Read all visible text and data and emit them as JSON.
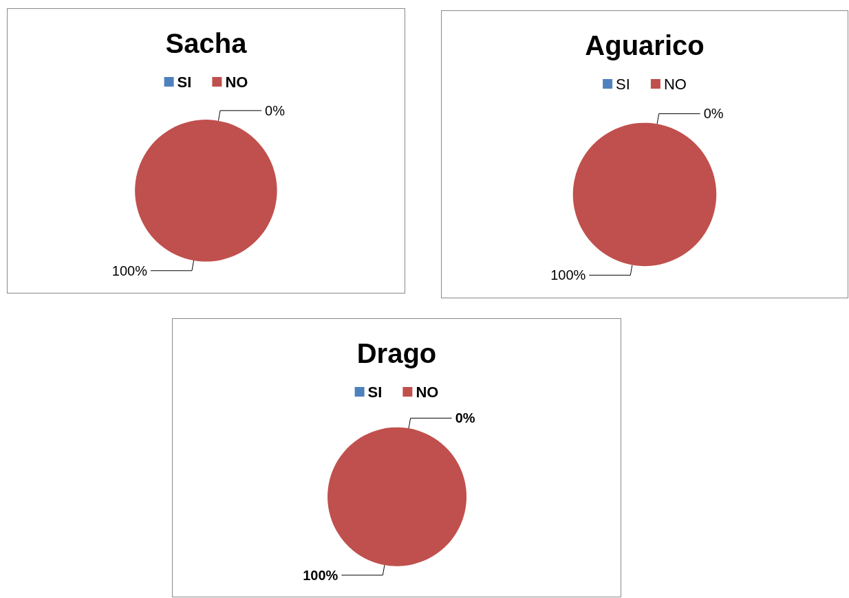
{
  "chart_data": [
    {
      "type": "pie",
      "title": "Sacha",
      "categories": [
        "SI",
        "NO"
      ],
      "values": [
        0,
        100
      ],
      "colors": [
        "#4f81bd",
        "#c0504d"
      ],
      "value_labels": [
        "0%",
        "100%"
      ],
      "legend": "top"
    },
    {
      "type": "pie",
      "title": "Aguarico",
      "categories": [
        "SI",
        "NO"
      ],
      "values": [
        0,
        100
      ],
      "colors": [
        "#4f81bd",
        "#c0504d"
      ],
      "value_labels": [
        "0%",
        "100%"
      ],
      "legend": "top"
    },
    {
      "type": "pie",
      "title": "Drago",
      "categories": [
        "SI",
        "NO"
      ],
      "values": [
        0,
        100
      ],
      "colors": [
        "#4f81bd",
        "#c0504d"
      ],
      "value_labels": [
        "0%",
        "100%"
      ],
      "legend": "top"
    }
  ]
}
